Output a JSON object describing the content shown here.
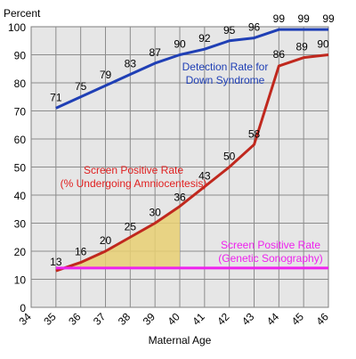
{
  "chart_data": {
    "type": "line",
    "title": "",
    "ylabel": "Percent",
    "xlabel": "Maternal Age",
    "xlim": [
      34,
      46
    ],
    "ylim": [
      0,
      100
    ],
    "x_ticks": [
      34,
      35,
      36,
      37,
      38,
      39,
      40,
      41,
      42,
      43,
      44,
      45,
      46
    ],
    "y_ticks": [
      0,
      10,
      20,
      30,
      40,
      50,
      60,
      70,
      80,
      90,
      100
    ],
    "grid": true,
    "plot_background": "#e6e6e6",
    "series": [
      {
        "name": "Detection Rate for Down Syndrome",
        "color": "#1f3fb5",
        "x": [
          35,
          36,
          37,
          38,
          39,
          40,
          41,
          42,
          43,
          44,
          45,
          46
        ],
        "y": [
          71,
          75,
          79,
          83,
          87,
          90,
          92,
          95,
          96,
          99,
          99,
          99
        ],
        "labels": [
          "71",
          "75",
          "79",
          "83",
          "87",
          "90",
          "92",
          "95",
          "96",
          "99",
          "99",
          "99"
        ]
      },
      {
        "name": "Screen Positive Rate (% Undergoing Amniocentesis)",
        "color": "#c0281e",
        "x": [
          35,
          36,
          37,
          38,
          39,
          40,
          41,
          42,
          43,
          44,
          45,
          46
        ],
        "y": [
          13,
          16,
          20,
          25,
          30,
          36,
          43,
          50,
          58,
          86,
          89,
          90
        ],
        "labels": [
          "13",
          "16",
          "20",
          "25",
          "30",
          "36",
          "43",
          "50",
          "58",
          "86",
          "89",
          "90"
        ]
      },
      {
        "name": "Screen Positive Rate (Genetic Sonography)",
        "color": "#ee22ee",
        "x": [
          35,
          46
        ],
        "y": [
          14,
          14
        ]
      }
    ],
    "shaded_region": {
      "x_from": 35,
      "x_to": 40,
      "under_series": 1,
      "color": "#e8cf72"
    },
    "annotations": [
      {
        "lines": [
          "Detection Rate for",
          "Down Syndrome"
        ],
        "color": "#1f3fb5"
      },
      {
        "lines": [
          "Screen Positive Rate",
          "(% Undergoing Amniocentesis)"
        ],
        "color": "#e02020"
      },
      {
        "lines": [
          "Screen Positive Rate",
          "(Genetic Sonography)"
        ],
        "color": "#ee22ee"
      }
    ]
  }
}
